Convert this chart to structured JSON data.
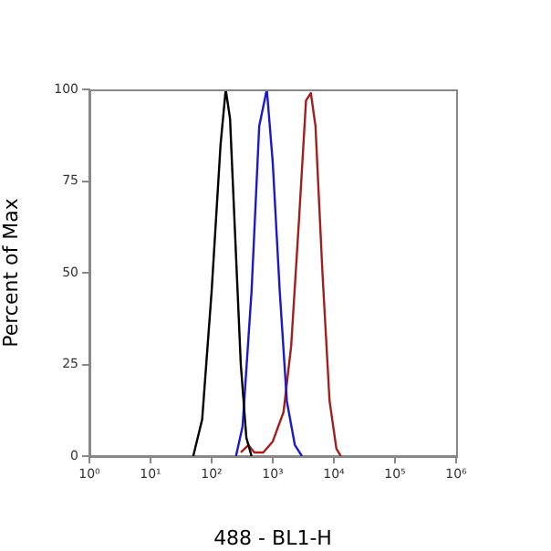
{
  "chart_data": {
    "type": "line",
    "xlabel": "488 - BL1-H",
    "ylabel": "Percent of Max",
    "log": "x",
    "marker": "none",
    "xlim": [
      1,
      1000000
    ],
    "xticks": [
      {
        "value": 1,
        "label": "10⁰"
      },
      {
        "value": 10,
        "label": "10¹"
      },
      {
        "value": 100,
        "label": "10²"
      },
      {
        "value": 1000,
        "label": "10³"
      },
      {
        "value": 10000,
        "label": "10⁴"
      },
      {
        "value": 100000,
        "label": "10⁵"
      },
      {
        "value": 1000000,
        "label": "10⁶"
      }
    ],
    "ylim": [
      0,
      100
    ],
    "yticks": [
      0,
      25,
      50,
      75,
      100
    ],
    "series": [
      {
        "color": "#000000",
        "x": [
          50,
          70,
          100,
          140,
          170,
          200,
          250,
          300,
          370,
          450
        ],
        "values": [
          0,
          10,
          45,
          85,
          100,
          92,
          55,
          25,
          5,
          0
        ]
      },
      {
        "color": "#1a1acc",
        "x": [
          250,
          320,
          450,
          600,
          800,
          1000,
          1300,
          1700,
          2300,
          3000
        ],
        "values": [
          0,
          8,
          45,
          90,
          100,
          80,
          45,
          15,
          3,
          0
        ]
      },
      {
        "color": "#a02020",
        "x": [
          300,
          400,
          500,
          700,
          1000,
          1500,
          2000,
          2700,
          3500,
          4200,
          5000,
          6500,
          8500,
          11000,
          13000
        ],
        "values": [
          1,
          3,
          1,
          1,
          4,
          12,
          30,
          65,
          97,
          99,
          90,
          50,
          15,
          2,
          0
        ]
      }
    ]
  }
}
